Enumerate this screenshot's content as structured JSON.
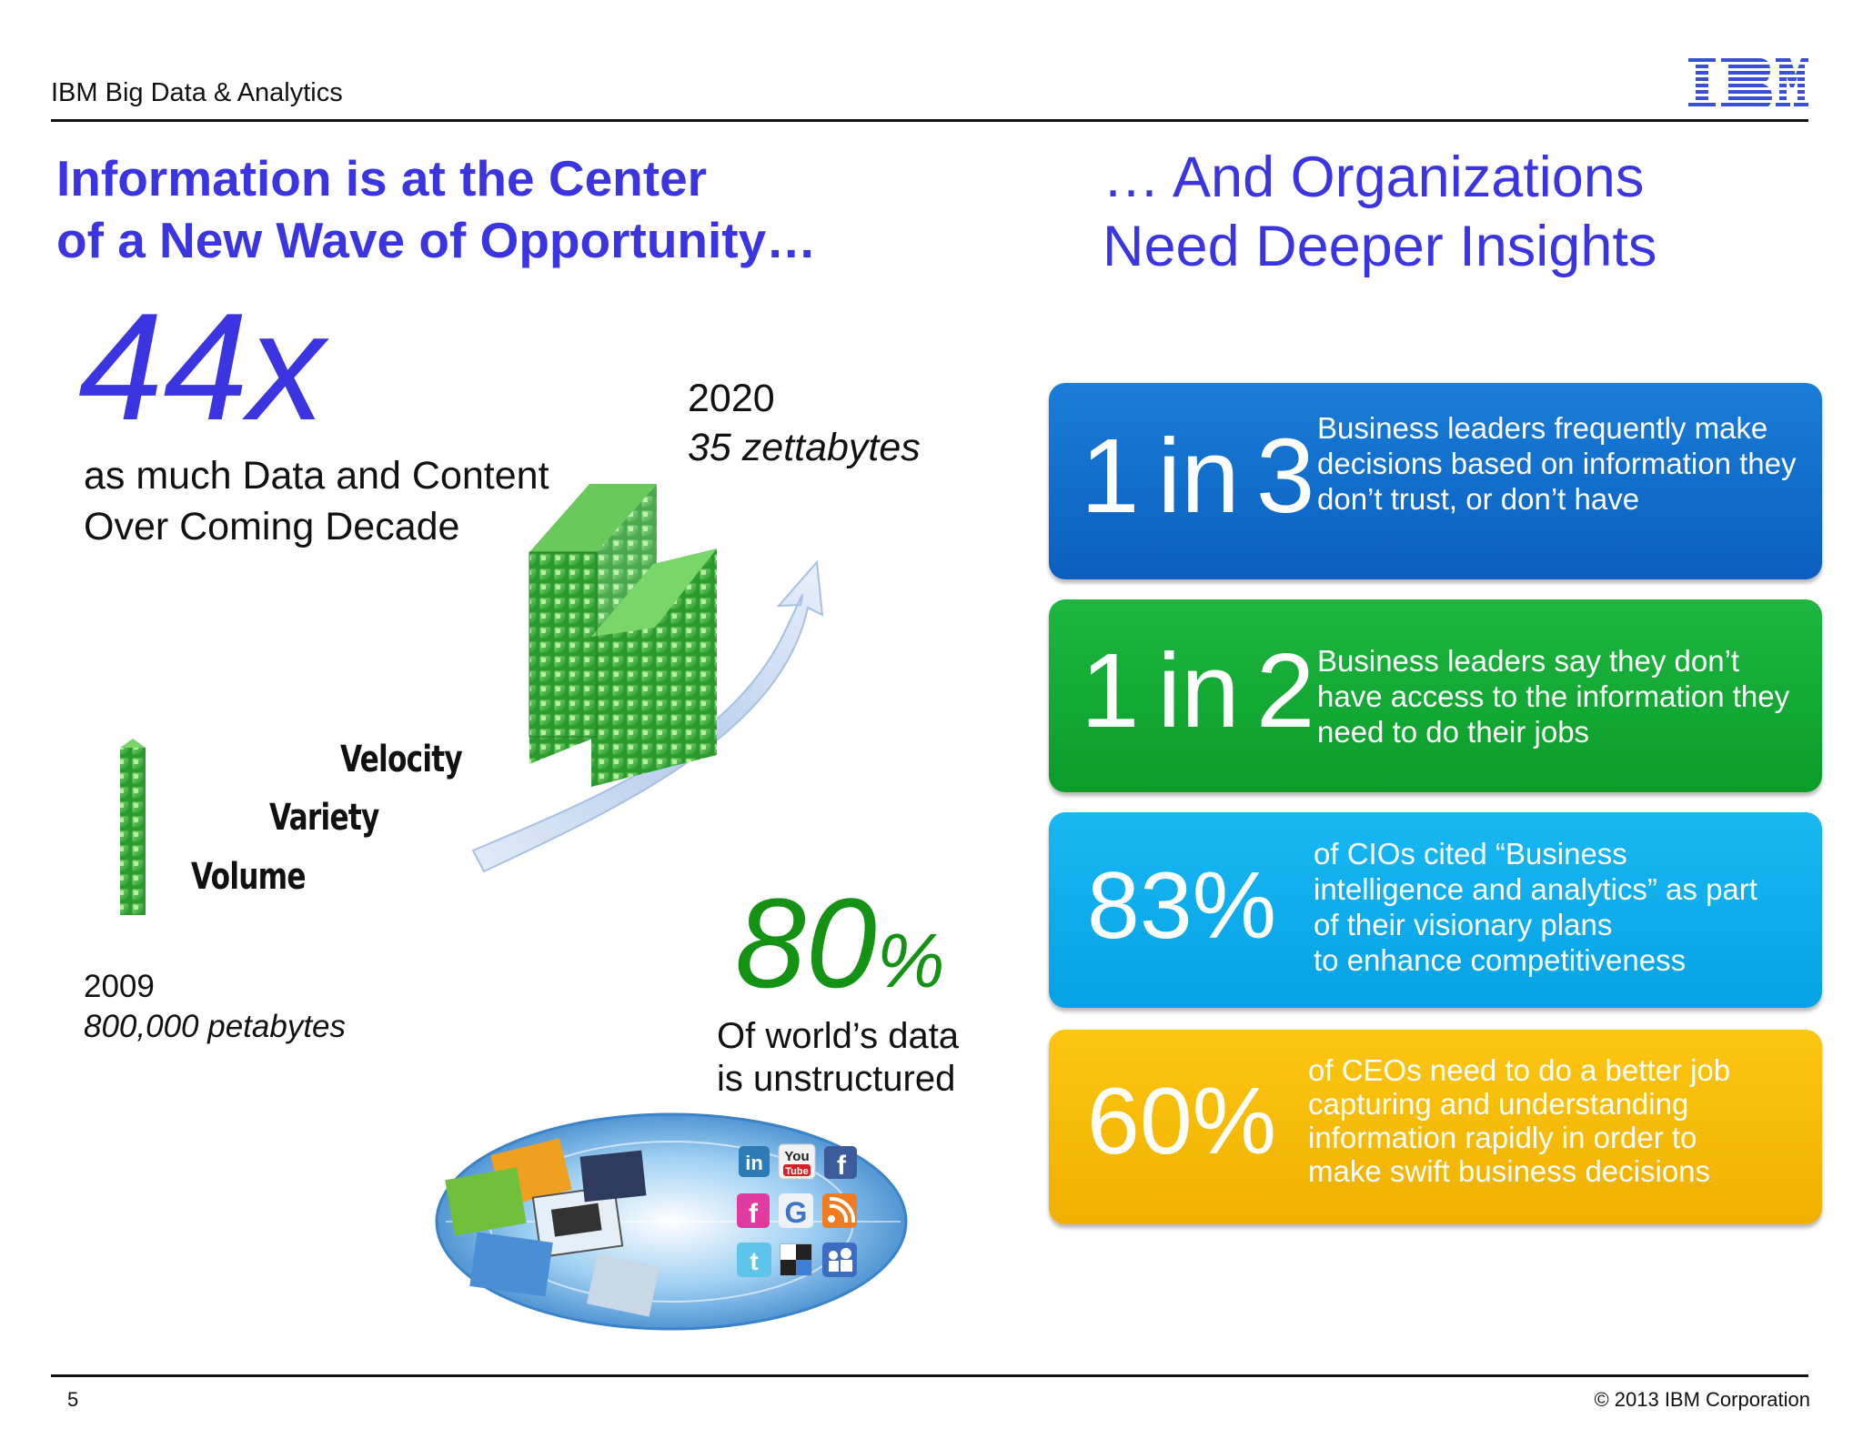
{
  "header": {
    "section_title": "IBM Big Data & Analytics",
    "logo_text": "IBM"
  },
  "left": {
    "heading_line1": "Information is at the Center",
    "heading_line2": "of a New Wave of Opportunity…",
    "big_stat": "44x",
    "caption_line1": "as much Data and Content",
    "caption_line2": "Over Coming Decade",
    "year_2020": "2020",
    "value_2020": "35 zettabytes",
    "year_2009": "2009",
    "value_2009": "800,000 petabytes",
    "v_words": [
      "Velocity",
      "Variety",
      "Volume"
    ],
    "pct_80": "80",
    "pct_sign": "%",
    "unstruct_line1": "Of world’s data",
    "unstruct_line2": "is unstructured",
    "social_icons": [
      "linkedin-icon",
      "youtube-icon",
      "facebook-icon",
      "facebook-icon",
      "google-icon",
      "rss-icon",
      "twitter-icon",
      "delicious-icon",
      "myspace-icon"
    ]
  },
  "right": {
    "heading_line1": "… And Organizations",
    "heading_line2": "Need Deeper Insights",
    "stats": [
      {
        "stat_a": "1",
        "stat_in": "in",
        "stat_b": "3",
        "desc": [
          "Business leaders frequently make",
          "decisions based on information they",
          "don’t trust, or don’t have"
        ],
        "color": "#0a6ccc"
      },
      {
        "stat_a": "1",
        "stat_in": "in",
        "stat_b": "2",
        "desc": [
          "Business leaders say they don’t",
          "have access to the information they",
          "need to do their jobs"
        ],
        "color": "#14a935"
      },
      {
        "stat": "83%",
        "desc": [
          "of CIOs cited “Business",
          "intelligence and analytics” as part",
          "of their visionary plans",
          "to enhance competitiveness"
        ],
        "color": "#0aaeec"
      },
      {
        "stat": "60%",
        "desc": [
          "of CEOs need to do a better job",
          "capturing and understanding",
          "information rapidly in order to",
          "make swift business decisions"
        ],
        "color": "#f7bb08"
      }
    ]
  },
  "footer": {
    "page_number": "5",
    "copyright": "© 2013 IBM Corporation"
  }
}
